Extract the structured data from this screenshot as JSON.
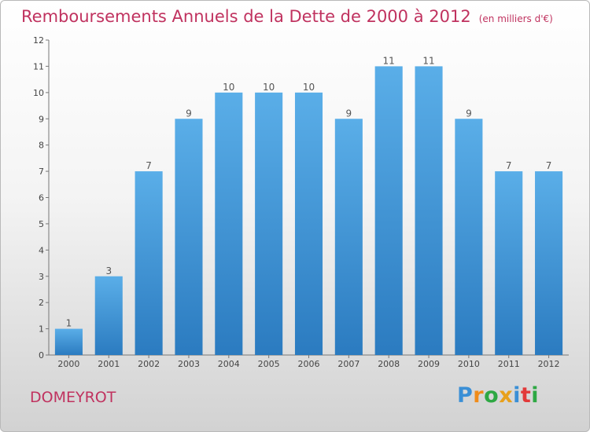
{
  "page": {
    "title": "Remboursements Annuels de la Dette de 2000 à 2012",
    "unit": "(en milliers d'€)",
    "town": "DOMEYROT",
    "logo": {
      "text": "Proxiti",
      "letters": [
        {
          "ch": "P",
          "color": "#3a8fd6"
        },
        {
          "ch": "r",
          "color": "#f08c1a"
        },
        {
          "ch": "o",
          "color": "#2ea843"
        },
        {
          "ch": "x",
          "color": "#e8a01a"
        },
        {
          "ch": "i",
          "color": "#3a8fd6"
        },
        {
          "ch": "t",
          "color": "#e23a3a"
        },
        {
          "ch": "i",
          "color": "#2ea843"
        }
      ]
    }
  },
  "chart_data": {
    "type": "bar",
    "title": "Remboursements Annuels de la Dette de 2000 à 2012",
    "categories": [
      "2000",
      "2001",
      "2002",
      "2003",
      "2004",
      "2005",
      "2006",
      "2007",
      "2008",
      "2009",
      "2010",
      "2011",
      "2012"
    ],
    "values": [
      1,
      3,
      7,
      9,
      10,
      10,
      10,
      9,
      11,
      11,
      9,
      7,
      7
    ],
    "ylim": [
      0,
      12
    ],
    "yticks": [
      0,
      1,
      2,
      3,
      4,
      5,
      6,
      7,
      8,
      9,
      10,
      11,
      12
    ],
    "xlabel": "",
    "ylabel": "",
    "grid": false,
    "bar_color_top": "#5aaee8",
    "bar_color_bottom": "#2b7bc0",
    "title_color": "#c0325f"
  }
}
